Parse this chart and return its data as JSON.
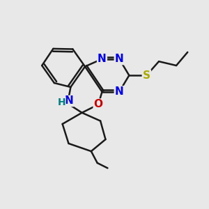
{
  "bg_color": "#e8e8e8",
  "bond_color": "#1a1a1a",
  "bond_width": 1.8,
  "atom_colors": {
    "N": "#0000ee",
    "O": "#cc0000",
    "S": "#aaaa00",
    "NH_N": "#0000ee",
    "NH_H": "#008080",
    "C": "#1a1a1a"
  },
  "font_size": 11,
  "xlim": [
    0,
    10
  ],
  "ylim": [
    0,
    10
  ]
}
